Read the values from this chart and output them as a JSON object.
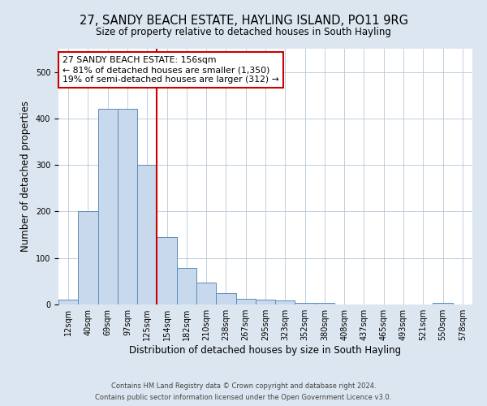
{
  "title": "27, SANDY BEACH ESTATE, HAYLING ISLAND, PO11 9RG",
  "subtitle": "Size of property relative to detached houses in South Hayling",
  "xlabel": "Distribution of detached houses by size in South Hayling",
  "ylabel": "Number of detached properties",
  "bin_labels": [
    "12sqm",
    "40sqm",
    "69sqm",
    "97sqm",
    "125sqm",
    "154sqm",
    "182sqm",
    "210sqm",
    "238sqm",
    "267sqm",
    "295sqm",
    "323sqm",
    "352sqm",
    "380sqm",
    "408sqm",
    "437sqm",
    "465sqm",
    "493sqm",
    "521sqm",
    "550sqm",
    "578sqm"
  ],
  "bar_values": [
    10,
    200,
    420,
    420,
    300,
    145,
    78,
    48,
    25,
    12,
    10,
    8,
    4,
    3,
    0,
    0,
    0,
    0,
    0,
    4,
    0
  ],
  "bar_color": "#c8d9ed",
  "bar_edge_color": "#5b8db8",
  "vline_color": "#cc0000",
  "vline_index": 4.5,
  "ylim": [
    0,
    550
  ],
  "annotation_title": "27 SANDY BEACH ESTATE: 156sqm",
  "annotation_line1": "← 81% of detached houses are smaller (1,350)",
  "annotation_line2": "19% of semi-detached houses are larger (312) →",
  "annotation_box_color": "#ffffff",
  "annotation_box_edge_color": "#cc0000",
  "footer_line1": "Contains HM Land Registry data © Crown copyright and database right 2024.",
  "footer_line2": "Contains public sector information licensed under the Open Government Licence v3.0.",
  "background_color": "#dce6f0",
  "plot_bg_color": "#ffffff",
  "grid_color": "#b8c8d8",
  "title_fontsize": 10.5,
  "subtitle_fontsize": 8.5,
  "tick_fontsize": 7,
  "ylabel_fontsize": 8.5,
  "xlabel_fontsize": 8.5,
  "annotation_fontsize": 7.8,
  "footer_fontsize": 6.0
}
